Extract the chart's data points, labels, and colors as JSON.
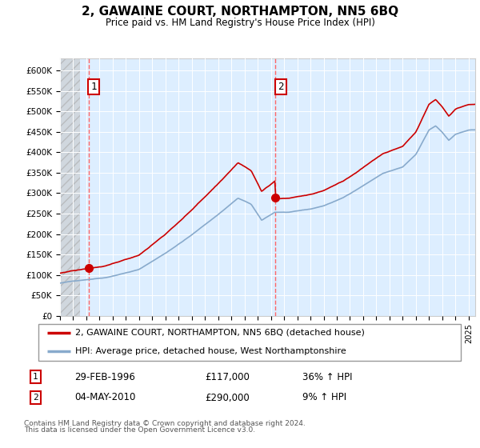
{
  "title": "2, GAWAINE COURT, NORTHAMPTON, NN5 6BQ",
  "subtitle": "Price paid vs. HM Land Registry's House Price Index (HPI)",
  "ylabel_ticks": [
    "£0",
    "£50K",
    "£100K",
    "£150K",
    "£200K",
    "£250K",
    "£300K",
    "£350K",
    "£400K",
    "£450K",
    "£500K",
    "£550K",
    "£600K"
  ],
  "ylim": [
    0,
    630000
  ],
  "xlim_start": 1994.0,
  "xlim_end": 2025.5,
  "t1_x": 1996.16,
  "t1_y": 117000,
  "t1_label": "1",
  "t1_date": "29-FEB-1996",
  "t1_price": "£117,000",
  "t1_hpi": "36% ↑ HPI",
  "t2_x": 2010.34,
  "t2_y": 290000,
  "t2_label": "2",
  "t2_date": "04-MAY-2010",
  "t2_price": "£290,000",
  "t2_hpi": "9% ↑ HPI",
  "legend_entry1": "2, GAWAINE COURT, NORTHAMPTON, NN5 6BQ (detached house)",
  "legend_entry2": "HPI: Average price, detached house, West Northamptonshire",
  "footer_line1": "Contains HM Land Registry data © Crown copyright and database right 2024.",
  "footer_line2": "This data is licensed under the Open Government Licence v3.0.",
  "line_color_property": "#cc0000",
  "line_color_hpi": "#88aacc",
  "bg_plot": "#ddeeff",
  "bg_hatch_color": "#c8c8c8",
  "grid_color": "#ffffff",
  "dash_color": "#ff6666",
  "hatch_end": 1995.5
}
